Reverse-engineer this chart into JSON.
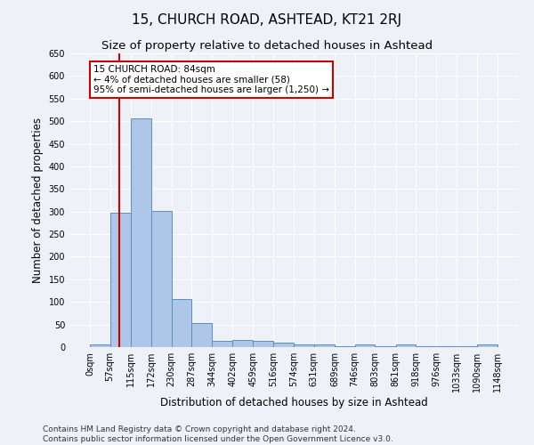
{
  "title": "15, CHURCH ROAD, ASHTEAD, KT21 2RJ",
  "subtitle": "Size of property relative to detached houses in Ashtead",
  "xlabel": "Distribution of detached houses by size in Ashtead",
  "ylabel": "Number of detached properties",
  "bin_edges": [
    0,
    57,
    115,
    172,
    230,
    287,
    344,
    402,
    459,
    516,
    574,
    631,
    689,
    746,
    803,
    861,
    918,
    976,
    1033,
    1090,
    1148
  ],
  "bin_labels": [
    "0sqm",
    "57sqm",
    "115sqm",
    "172sqm",
    "230sqm",
    "287sqm",
    "344sqm",
    "402sqm",
    "459sqm",
    "516sqm",
    "574sqm",
    "631sqm",
    "689sqm",
    "746sqm",
    "803sqm",
    "861sqm",
    "918sqm",
    "976sqm",
    "1033sqm",
    "1090sqm",
    "1148sqm"
  ],
  "bar_heights": [
    5,
    298,
    507,
    302,
    107,
    53,
    13,
    15,
    13,
    9,
    6,
    5,
    1,
    5,
    1,
    5,
    1,
    1,
    1,
    5
  ],
  "bar_color": "#aec6e8",
  "bar_edgecolor": "#5a8fc2",
  "vline_x": 84,
  "vline_color": "#cc0000",
  "annotation_text": "15 CHURCH ROAD: 84sqm\n← 4% of detached houses are smaller (58)\n95% of semi-detached houses are larger (1,250) →",
  "annotation_bbox_color": "white",
  "annotation_bbox_edgecolor": "#cc0000",
  "ylim": [
    0,
    650
  ],
  "yticks": [
    0,
    50,
    100,
    150,
    200,
    250,
    300,
    350,
    400,
    450,
    500,
    550,
    600,
    650
  ],
  "footer_text": "Contains HM Land Registry data © Crown copyright and database right 2024.\nContains public sector information licensed under the Open Government Licence v3.0.",
  "background_color": "#eef2f8",
  "grid_color": "#ffffff",
  "title_fontsize": 11,
  "subtitle_fontsize": 9.5,
  "axis_fontsize": 8.5,
  "tick_fontsize": 7,
  "footer_fontsize": 6.5
}
